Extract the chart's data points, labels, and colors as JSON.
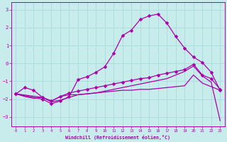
{
  "xlabel": "Windchill (Refroidissement éolien,°C)",
  "bg_color": "#c8ecec",
  "line_color": "#aa00aa",
  "grid_color": "#aadddd",
  "xlim": [
    -0.5,
    23.5
  ],
  "ylim": [
    -3.5,
    3.4
  ],
  "xticks": [
    0,
    1,
    2,
    3,
    4,
    5,
    6,
    7,
    8,
    9,
    10,
    11,
    12,
    13,
    14,
    15,
    16,
    17,
    18,
    19,
    20,
    21,
    22,
    23
  ],
  "yticks": [
    -3,
    -2,
    -1,
    0,
    1,
    2,
    3
  ],
  "curve_peak_x": [
    0,
    3,
    4,
    5,
    6,
    7,
    8,
    9,
    10,
    11,
    12,
    13,
    14,
    15,
    16,
    17,
    18,
    19,
    20,
    21,
    22,
    23
  ],
  "curve_peak_y": [
    -1.7,
    -2.0,
    -2.25,
    -2.1,
    -1.85,
    -0.9,
    -0.75,
    -0.5,
    -0.2,
    0.55,
    1.55,
    1.85,
    2.45,
    2.65,
    2.75,
    2.25,
    1.5,
    0.85,
    0.35,
    0.05,
    -0.5,
    -1.5
  ],
  "curve_mid_x": [
    0,
    1,
    2,
    3,
    4,
    5,
    6,
    7,
    8,
    9,
    10,
    11,
    12,
    13,
    14,
    15,
    16,
    17,
    18,
    19,
    20,
    21,
    22,
    23
  ],
  "curve_mid_y": [
    -1.7,
    -1.35,
    -1.5,
    -1.9,
    -2.1,
    -1.85,
    -1.65,
    -1.55,
    -1.45,
    -1.35,
    -1.25,
    -1.15,
    -1.05,
    -0.95,
    -0.85,
    -0.8,
    -0.65,
    -0.55,
    -0.45,
    -0.35,
    -0.05,
    -0.65,
    -0.85,
    -1.45
  ],
  "curve_low_x": [
    0,
    1,
    2,
    3,
    4,
    5,
    6,
    7,
    8,
    9,
    10,
    11,
    12,
    13,
    14,
    15,
    16,
    17,
    18,
    19,
    20,
    21,
    22,
    23
  ],
  "curve_low_y": [
    -1.7,
    -1.85,
    -1.95,
    -1.9,
    -2.1,
    -1.85,
    -1.75,
    -1.75,
    -1.7,
    -1.65,
    -1.6,
    -1.55,
    -1.5,
    -1.5,
    -1.45,
    -1.45,
    -1.4,
    -1.35,
    -1.3,
    -1.25,
    -0.65,
    -1.1,
    -1.3,
    -1.5
  ],
  "curve_bot_x": [
    0,
    3,
    4,
    5,
    6,
    7,
    8,
    9,
    10,
    11,
    12,
    13,
    14,
    15,
    16,
    17,
    18,
    19,
    20,
    21,
    22,
    23
  ],
  "curve_bot_y": [
    -1.7,
    -1.9,
    -2.15,
    -2.05,
    -1.9,
    -1.75,
    -1.7,
    -1.65,
    -1.55,
    -1.45,
    -1.35,
    -1.25,
    -1.15,
    -1.05,
    -0.95,
    -0.85,
    -0.65,
    -0.45,
    -0.15,
    -0.7,
    -1.05,
    -3.2
  ],
  "marker": "D",
  "markersize": 2.5,
  "linewidth": 0.9
}
